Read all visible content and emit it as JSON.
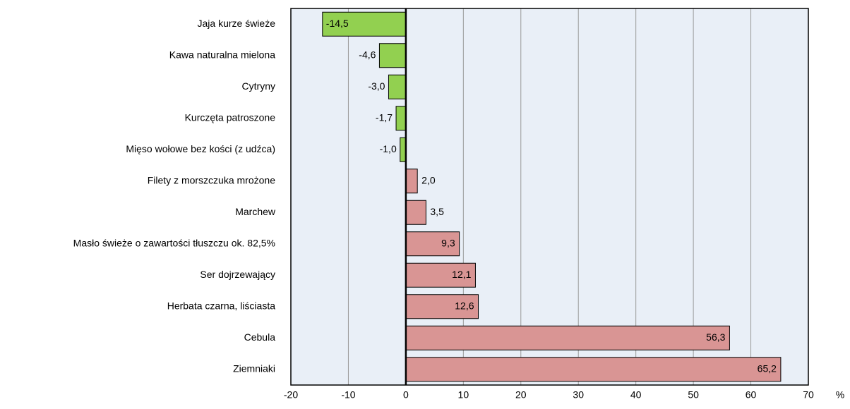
{
  "chart_data": {
    "type": "barh",
    "categories": [
      "Jaja kurze świeże",
      "Kawa naturalna mielona",
      "Cytryny",
      "Kurczęta patroszone",
      "Mięso wołowe bez kości (z udźca)",
      "Filety z morszczuka mrożone",
      "Marchew",
      "Masło świeże o zawartości tłuszczu ok. 82,5%",
      "Ser dojrzewający",
      "Herbata czarna, liściasta",
      "Cebula",
      "Ziemniaki"
    ],
    "values": [
      -14.5,
      -4.6,
      -3.0,
      -1.7,
      -1.0,
      2.0,
      3.5,
      9.3,
      12.1,
      12.6,
      56.3,
      65.2
    ],
    "value_labels": [
      "-14,5",
      "-4,6",
      "-3,0",
      "-1,7",
      "-1,0",
      "2,0",
      "3,5",
      "9,3",
      "12,1",
      "12,6",
      "56,3",
      "65,2"
    ],
    "colors": [
      "#92d050",
      "#92d050",
      "#92d050",
      "#92d050",
      "#92d050",
      "#d99594",
      "#d99594",
      "#d99594",
      "#d99594",
      "#d99594",
      "#d99594",
      "#d99594"
    ],
    "x_label": "%",
    "xlim": [
      -20,
      70
    ],
    "xticks": [
      -20,
      -10,
      0,
      10,
      20,
      30,
      40,
      50,
      60,
      70
    ],
    "grid": true
  }
}
